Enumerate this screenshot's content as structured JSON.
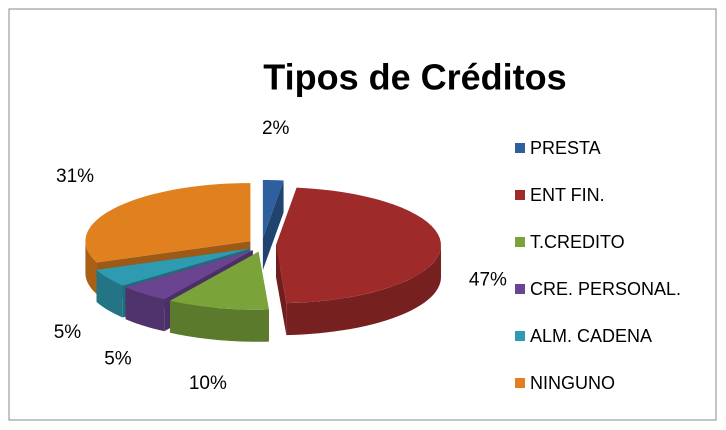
{
  "chart_data": {
    "type": "pie3d",
    "title": "Tipos de Créditos",
    "categories": [
      "PRESTA",
      "ENT FIN.",
      "T.CREDITO",
      "CRE. PERSONAL.",
      "ALM. CADENA",
      "NINGUNO"
    ],
    "values": [
      2,
      47,
      10,
      5,
      5,
      31
    ],
    "value_labels": [
      "2%",
      "47%",
      "10%",
      "5%",
      "5%",
      "31%"
    ],
    "colors": [
      "#2e5f9e",
      "#9e2a2a",
      "#7aa33a",
      "#6a4491",
      "#2e9bb0",
      "#e0801f"
    ],
    "legend": "right"
  }
}
